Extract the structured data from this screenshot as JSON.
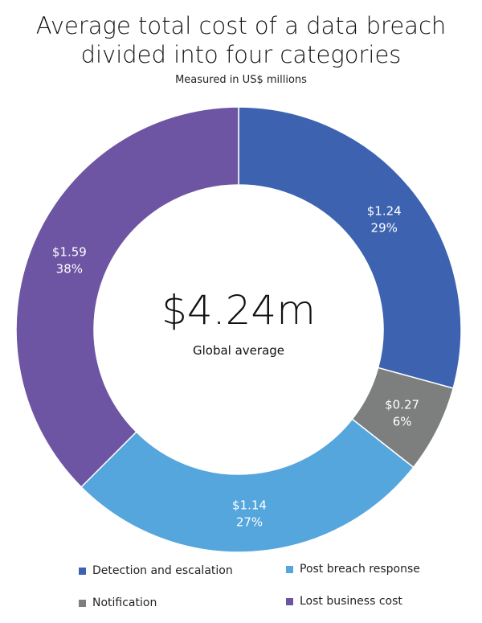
{
  "chart_data": {
    "type": "pie",
    "title": "Average total cost of a data breach divided into four categories",
    "subtitle": "Measured in US$ millions",
    "center_value": "$4.24m",
    "center_label": "Global average",
    "slices": [
      {
        "name": "Detection and escalation",
        "value": 1.24,
        "value_label": "$1.24",
        "percent_label": "29%",
        "color": "#3d63b0"
      },
      {
        "name": "Notification",
        "value": 0.27,
        "value_label": "$0.27",
        "percent_label": "6%",
        "color": "#7d7f7e"
      },
      {
        "name": "Post breach response",
        "value": 1.14,
        "value_label": "$1.14",
        "percent_label": "27%",
        "color": "#55a6dd"
      },
      {
        "name": "Lost business cost",
        "value": 1.59,
        "value_label": "$1.59",
        "percent_label": "38%",
        "color": "#6e55a3"
      }
    ],
    "legend_order": [
      0,
      2,
      1,
      3
    ]
  }
}
